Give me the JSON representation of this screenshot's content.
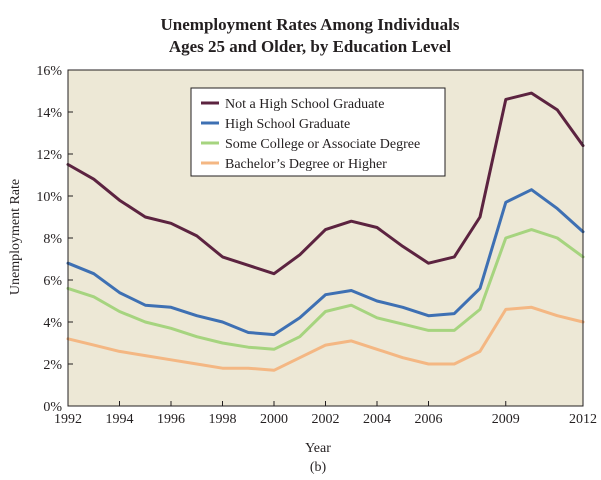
{
  "chart_data": {
    "type": "line",
    "title_line1": "Unemployment Rates Among Individuals",
    "title_line2": "Ages 25 and Older, by Education Level",
    "xlabel": "Year",
    "sublabel": "(b)",
    "ylabel": "Unemployment Rate",
    "xlim": [
      1992,
      2012
    ],
    "ylim": [
      0,
      16
    ],
    "x_ticks": [
      1992,
      1994,
      1996,
      1998,
      2000,
      2002,
      2004,
      2006,
      2009,
      2012
    ],
    "x_tick_labels": [
      "1992",
      "1994",
      "1996",
      "1998",
      "2000",
      "2002",
      "2004",
      "2006",
      "2009",
      "2012"
    ],
    "y_ticks": [
      0,
      2,
      4,
      6,
      8,
      10,
      12,
      14,
      16
    ],
    "y_tick_labels": [
      "0%",
      "2%",
      "4%",
      "6%",
      "8%",
      "10%",
      "12%",
      "14%",
      "16%"
    ],
    "plot_background": "#ede8d6",
    "legend_position": "top-center",
    "grid": false,
    "x": [
      1992,
      1993,
      1994,
      1995,
      1996,
      1997,
      1998,
      1999,
      2000,
      2001,
      2002,
      2003,
      2004,
      2005,
      2006,
      2007,
      2008,
      2009,
      2010,
      2011,
      2012
    ],
    "series": [
      {
        "name": "Not a High School Graduate",
        "color": "#5c2340",
        "values": [
          11.5,
          10.8,
          9.8,
          9.0,
          8.7,
          8.1,
          7.1,
          6.7,
          6.3,
          7.2,
          8.4,
          8.8,
          8.5,
          7.6,
          6.8,
          7.1,
          9.0,
          14.6,
          14.9,
          14.1,
          12.4
        ]
      },
      {
        "name": "High School Graduate",
        "color": "#3e70b3",
        "values": [
          6.8,
          6.3,
          5.4,
          4.8,
          4.7,
          4.3,
          4.0,
          3.5,
          3.4,
          4.2,
          5.3,
          5.5,
          5.0,
          4.7,
          4.3,
          4.4,
          5.6,
          9.7,
          10.3,
          9.4,
          8.3
        ]
      },
      {
        "name": "Some College or Associate Degree",
        "color": "#a6d47f",
        "values": [
          5.6,
          5.2,
          4.5,
          4.0,
          3.7,
          3.3,
          3.0,
          2.8,
          2.7,
          3.3,
          4.5,
          4.8,
          4.2,
          3.9,
          3.6,
          3.6,
          4.6,
          8.0,
          8.4,
          8.0,
          7.1
        ]
      },
      {
        "name": "Bachelor’s Degree or Higher",
        "color": "#f4b783",
        "values": [
          3.2,
          2.9,
          2.6,
          2.4,
          2.2,
          2.0,
          1.8,
          1.8,
          1.7,
          2.3,
          2.9,
          3.1,
          2.7,
          2.3,
          2.0,
          2.0,
          2.6,
          4.6,
          4.7,
          4.3,
          4.0
        ]
      }
    ]
  }
}
